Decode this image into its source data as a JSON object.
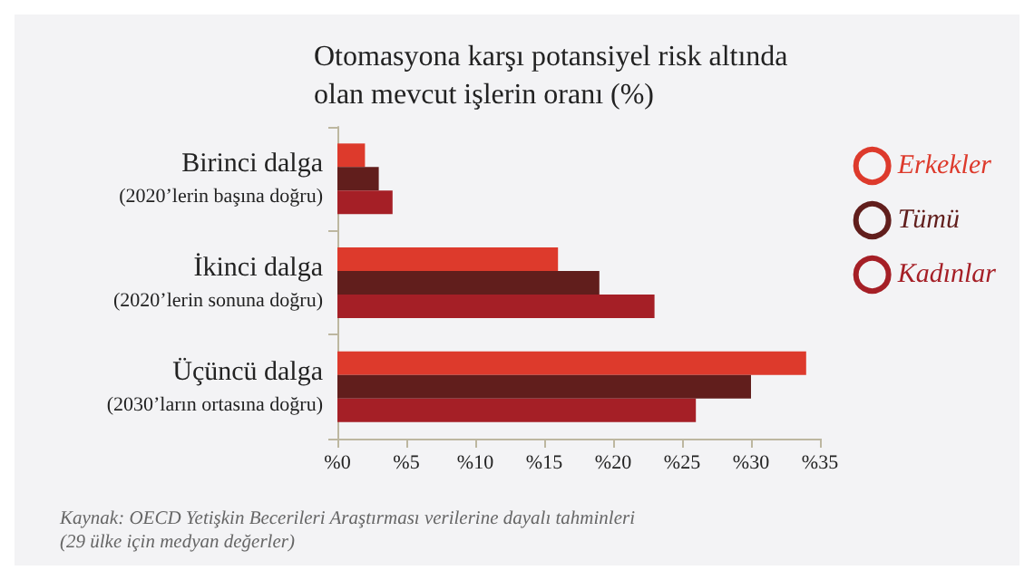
{
  "chart_data": {
    "type": "bar",
    "orientation": "horizontal",
    "title": "Otomasyona karşı potansiyel risk altında olan mevcut işlerin oranı (%)",
    "categories": [
      "Birinci dalga\n(2020’lerin başına doğru)",
      "İkinci dalga\n(2020’lerin sonuna doğru)",
      "Üçüncü dalga\n(2030’ların ortasına doğru)"
    ],
    "series": [
      {
        "name": "Erkekler",
        "color": "#dd3a2c",
        "values": [
          2,
          16,
          34
        ]
      },
      {
        "name": "Tümü",
        "color": "#611e1c",
        "values": [
          3,
          19,
          30
        ]
      },
      {
        "name": "Kadınlar",
        "color": "#a51f26",
        "values": [
          4,
          23,
          26
        ]
      }
    ],
    "xlim": [
      0,
      35
    ],
    "xticks": [
      {
        "value": 0,
        "label": "%0"
      },
      {
        "value": 5,
        "label": "%5"
      },
      {
        "value": 10,
        "label": "%10"
      },
      {
        "value": 15,
        "label": "%15"
      },
      {
        "value": 20,
        "label": "%20"
      },
      {
        "value": 25,
        "label": "%25"
      },
      {
        "value": 30,
        "label": "%30"
      },
      {
        "value": 35,
        "label": "%35"
      }
    ],
    "grid": false,
    "legend": "top right",
    "annotations": [
      "Kaynak: OECD Yetişkin Becerileri Araştırması verilerine dayalı tahminleri (29 ülke için medyan değerler)"
    ]
  }
}
